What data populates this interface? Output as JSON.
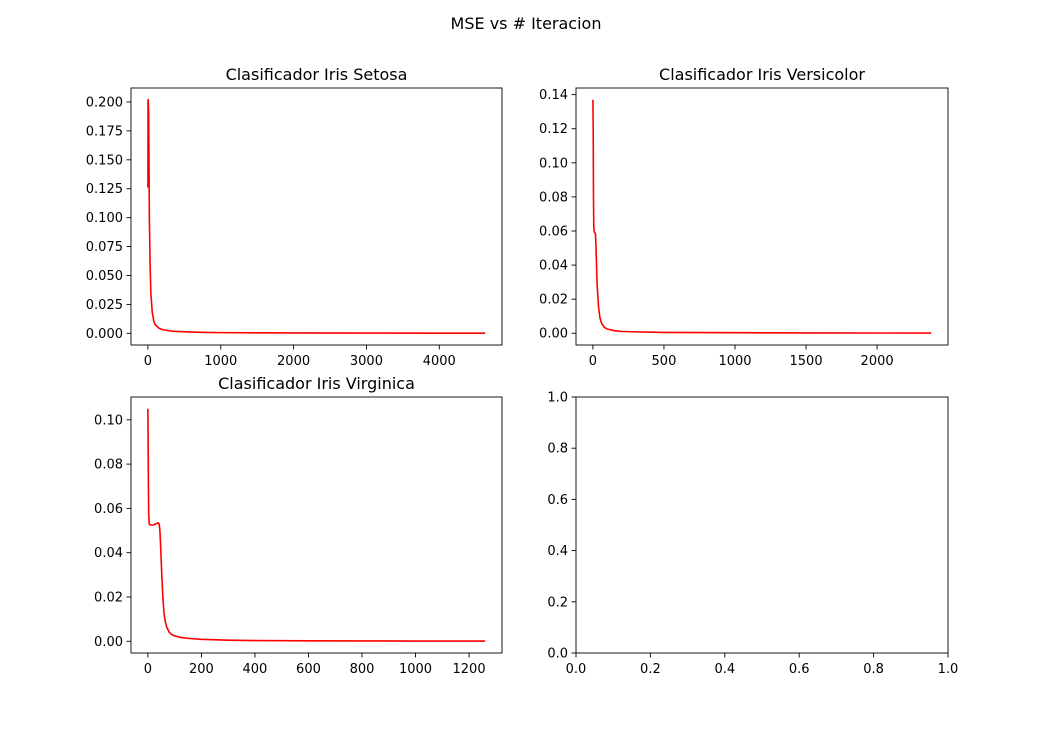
{
  "figure": {
    "suptitle": "MSE vs # Iteracion"
  },
  "chart_data": [
    {
      "type": "line",
      "title": "Clasificador Iris Setosa",
      "xlabel": "",
      "ylabel": "",
      "xlim": [
        -232,
        4861
      ],
      "ylim": [
        -0.0101,
        0.2121
      ],
      "xticks": [
        0,
        1000,
        2000,
        3000,
        4000
      ],
      "xtick_labels": [
        "0",
        "1000",
        "2000",
        "3000",
        "4000"
      ],
      "yticks": [
        0.0,
        0.025,
        0.05,
        0.075,
        0.1,
        0.125,
        0.15,
        0.175,
        0.2
      ],
      "ytick_labels": [
        "0.000",
        "0.025",
        "0.050",
        "0.075",
        "0.100",
        "0.125",
        "0.150",
        "0.175",
        "0.200"
      ],
      "grid": false,
      "line_color": "#ff0000",
      "series": [
        {
          "x": [
            0,
            2,
            5,
            10,
            15,
            20,
            30,
            40,
            60,
            80,
            100,
            150,
            200,
            300,
            400,
            600,
            800,
            1000,
            1500,
            2000,
            3000,
            4000,
            4630
          ],
          "y": [
            0.126,
            0.201,
            0.202,
            0.19,
            0.15,
            0.1,
            0.06,
            0.035,
            0.018,
            0.011,
            0.0075,
            0.0045,
            0.0032,
            0.0021,
            0.0016,
            0.0011,
            0.0008,
            0.0006,
            0.0004,
            0.0003,
            0.0002,
            0.00012,
            0.0001
          ]
        }
      ]
    },
    {
      "type": "line",
      "title": "Clasificador Iris Versicolor",
      "xlabel": "",
      "ylabel": "",
      "xlim": [
        -119,
        2499
      ],
      "ylim": [
        -0.0069,
        0.1439
      ],
      "xticks": [
        0,
        500,
        1000,
        1500,
        2000
      ],
      "xtick_labels": [
        "0",
        "500",
        "1000",
        "1500",
        "2000"
      ],
      "yticks": [
        0.0,
        0.02,
        0.04,
        0.06,
        0.08,
        0.1,
        0.12,
        0.14
      ],
      "ytick_labels": [
        "0.00",
        "0.02",
        "0.04",
        "0.06",
        "0.08",
        "0.10",
        "0.12",
        "0.14"
      ],
      "grid": false,
      "line_color": "#ff0000",
      "series": [
        {
          "x": [
            0,
            2,
            4,
            6,
            8,
            10,
            14,
            18,
            22,
            26,
            30,
            40,
            50,
            60,
            80,
            100,
            150,
            200,
            300,
            500,
            1000,
            1500,
            2000,
            2380
          ],
          "y": [
            0.137,
            0.12,
            0.08,
            0.064,
            0.06,
            0.0595,
            0.059,
            0.058,
            0.05,
            0.038,
            0.028,
            0.015,
            0.009,
            0.006,
            0.0035,
            0.0025,
            0.0015,
            0.0011,
            0.0008,
            0.0005,
            0.0003,
            0.0002,
            0.00015,
            0.0001
          ]
        }
      ]
    },
    {
      "type": "line",
      "title": "Clasificador Iris Virginica",
      "xlabel": "",
      "ylabel": "",
      "xlim": [
        -63,
        1323
      ],
      "ylim": [
        -0.0053,
        0.1103
      ],
      "xticks": [
        0,
        200,
        400,
        600,
        800,
        1000,
        1200
      ],
      "xtick_labels": [
        "0",
        "200",
        "400",
        "600",
        "800",
        "1000",
        "1200"
      ],
      "yticks": [
        0.0,
        0.02,
        0.04,
        0.06,
        0.08,
        0.1
      ],
      "ytick_labels": [
        "0.00",
        "0.02",
        "0.04",
        "0.06",
        "0.08",
        "0.10"
      ],
      "grid": false,
      "line_color": "#ff0000",
      "series": [
        {
          "x": [
            0,
            1,
            2,
            3,
            5,
            8,
            12,
            20,
            30,
            38,
            42,
            45,
            48,
            52,
            56,
            60,
            65,
            70,
            80,
            90,
            100,
            120,
            150,
            200,
            300,
            400,
            600,
            800,
            1000,
            1260
          ],
          "y": [
            0.105,
            0.09,
            0.07,
            0.058,
            0.053,
            0.0525,
            0.0525,
            0.0525,
            0.053,
            0.0535,
            0.053,
            0.05,
            0.042,
            0.03,
            0.02,
            0.013,
            0.009,
            0.0065,
            0.004,
            0.003,
            0.0024,
            0.0018,
            0.0013,
            0.0009,
            0.0005,
            0.0003,
            0.0002,
            0.00015,
            0.0001,
            0.0001
          ]
        }
      ]
    },
    {
      "type": "line",
      "title": "",
      "xlabel": "",
      "ylabel": "",
      "xlim": [
        0,
        1
      ],
      "ylim": [
        0,
        1
      ],
      "xticks": [
        0.0,
        0.2,
        0.4,
        0.6,
        0.8,
        1.0
      ],
      "xtick_labels": [
        "0.0",
        "0.2",
        "0.4",
        "0.6",
        "0.8",
        "1.0"
      ],
      "yticks": [
        0.0,
        0.2,
        0.4,
        0.6,
        0.8,
        1.0
      ],
      "ytick_labels": [
        "0.0",
        "0.2",
        "0.4",
        "0.6",
        "0.8",
        "1.0"
      ],
      "grid": false,
      "line_color": "#ff0000",
      "series": []
    }
  ]
}
